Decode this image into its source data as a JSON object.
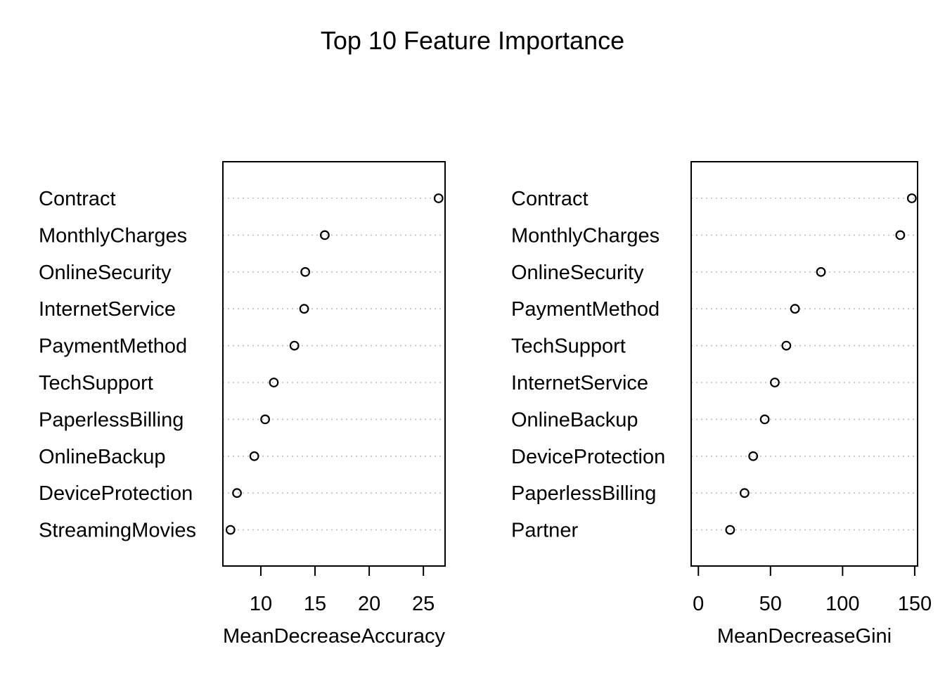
{
  "title": "Top 10 Feature Importance",
  "chart_data": [
    {
      "type": "scatter",
      "subtype": "dotchart",
      "xlabel": "MeanDecreaseAccuracy",
      "xlim": [
        6.5,
        27
      ],
      "xticks": [
        10,
        15,
        20,
        25
      ],
      "categories": [
        "Contract",
        "MonthlyCharges",
        "OnlineSecurity",
        "InternetService",
        "PaymentMethod",
        "TechSupport",
        "PaperlessBilling",
        "OnlineBackup",
        "DeviceProtection",
        "StreamingMovies"
      ],
      "values": [
        26.4,
        15.9,
        14.1,
        14.0,
        13.1,
        11.2,
        10.4,
        9.4,
        7.8,
        7.2
      ],
      "grid": "dotted horizontal guides"
    },
    {
      "type": "scatter",
      "subtype": "dotchart",
      "xlabel": "MeanDecreaseGini",
      "xlim": [
        -5,
        152
      ],
      "xticks": [
        0,
        50,
        100,
        150
      ],
      "categories": [
        "Contract",
        "MonthlyCharges",
        "OnlineSecurity",
        "PaymentMethod",
        "TechSupport",
        "InternetService",
        "OnlineBackup",
        "DeviceProtection",
        "PaperlessBilling",
        "Partner"
      ],
      "values": [
        148,
        140,
        85,
        67,
        61,
        53,
        46,
        38,
        32,
        22
      ],
      "grid": "dotted horizontal guides"
    }
  ]
}
